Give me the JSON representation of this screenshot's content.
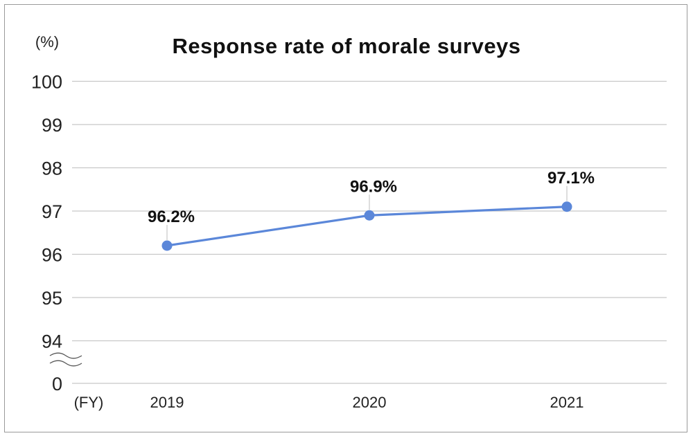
{
  "chart_data": {
    "type": "line",
    "title": "Response rate of morale surveys",
    "ylabel": "(%)",
    "xlabel": "(FY)",
    "categories": [
      "2019",
      "2020",
      "2021"
    ],
    "series": [
      {
        "values": [
          96.2,
          96.9,
          97.1
        ],
        "labels": [
          "96.2%",
          "96.9%",
          "97.1%"
        ]
      }
    ],
    "ylim": [
      94,
      100
    ],
    "yticks": [
      "100",
      "99",
      "98",
      "97",
      "96",
      "95",
      "94",
      "0"
    ],
    "axis_break": true,
    "grid": true,
    "line_color": "#5b87d9"
  }
}
